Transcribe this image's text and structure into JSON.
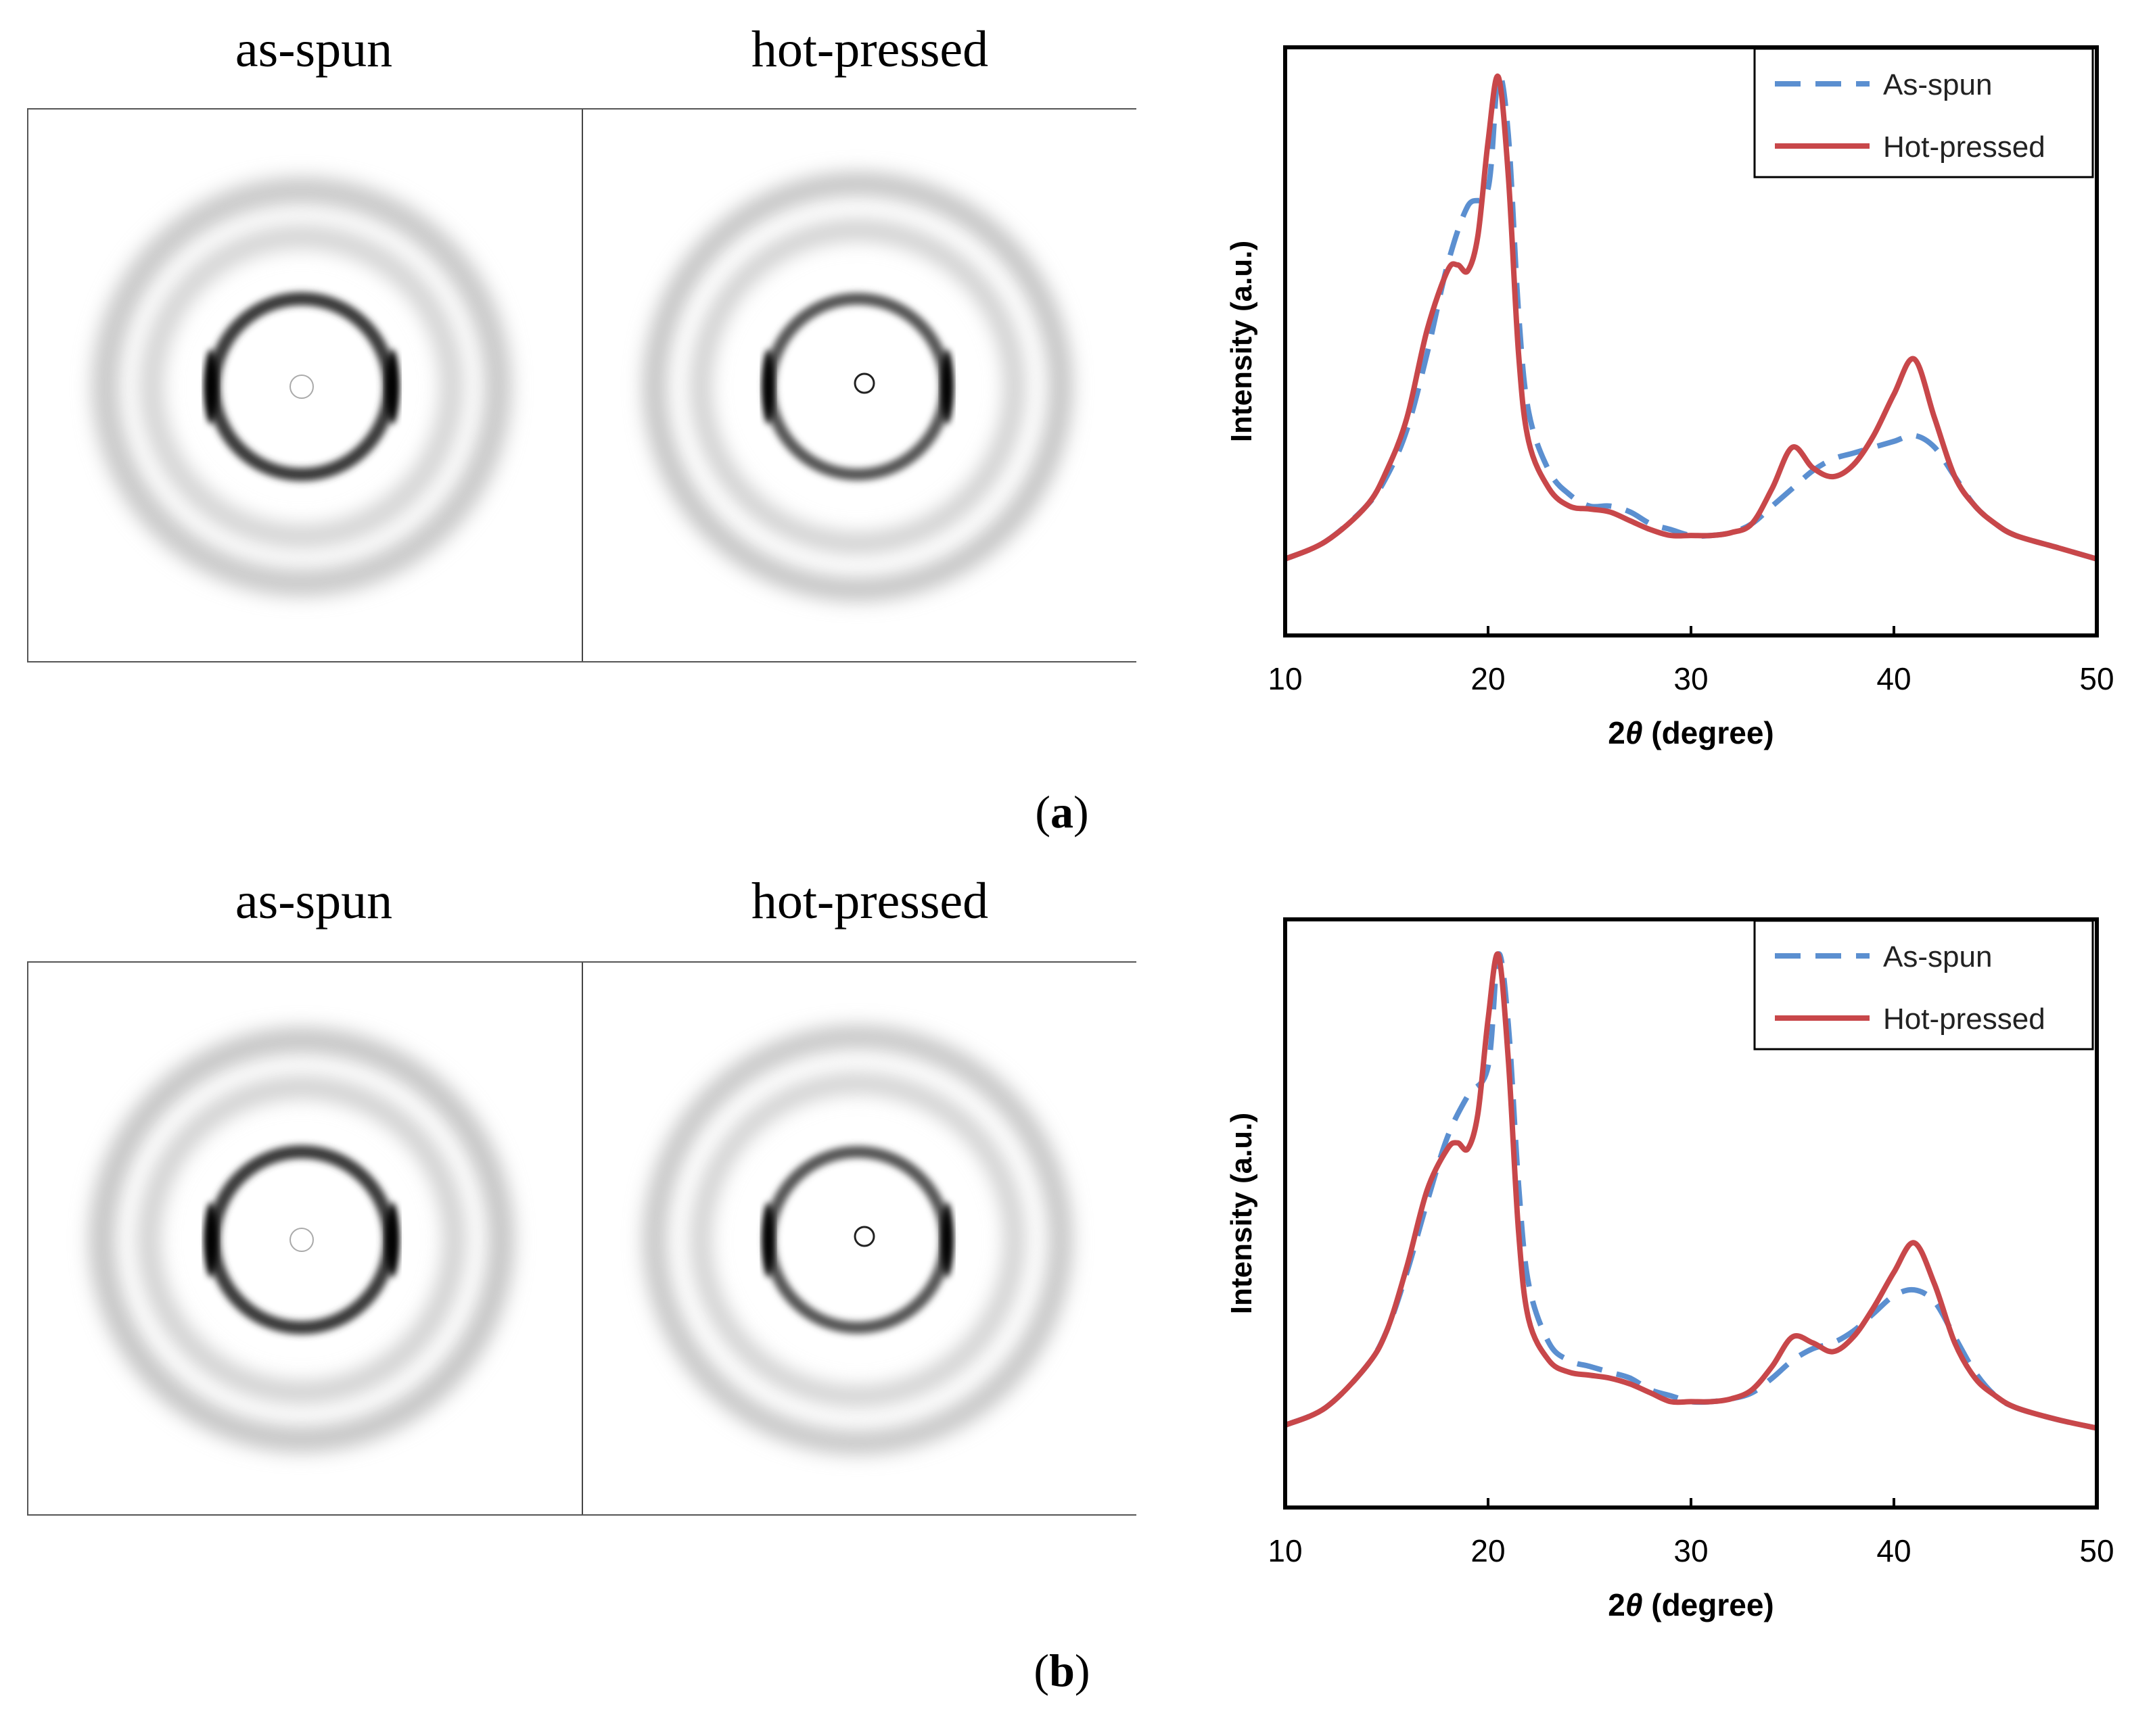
{
  "panels": [
    {
      "id": "a",
      "label": "a",
      "image_labels": {
        "left": "as-spun",
        "right": "hot-pressed"
      },
      "legend": [
        "As-spun",
        "Hot-pressed"
      ]
    },
    {
      "id": "b",
      "label": "b",
      "image_labels": {
        "left": "as-spun",
        "right": "hot-pressed"
      },
      "legend": [
        "As-spun",
        "Hot-pressed"
      ]
    }
  ],
  "colors": {
    "as_spun": "#5b8fd0",
    "hot_pressed": "#c8474a",
    "axis": "#000000"
  },
  "chart_data": [
    {
      "type": "line",
      "panel": "a",
      "title": "",
      "xlabel_prefix": "2",
      "xlabel_symbol": "θ",
      "xlabel_suffix": " (degree)",
      "ylabel": "Intensity (a.u.)",
      "xlim": [
        10,
        50
      ],
      "ylim": [
        0,
        100
      ],
      "xticks": [
        "10",
        "20",
        "30",
        "40",
        "50"
      ],
      "legend_position": "top-right",
      "series": [
        {
          "name": "As-spun",
          "style": "dashed",
          "x": [
            10,
            12,
            14,
            15,
            16,
            17,
            18,
            19,
            20,
            20.5,
            21,
            21.5,
            22,
            23,
            24,
            25,
            26,
            27,
            28,
            29,
            30,
            31,
            32,
            33,
            34,
            35,
            36,
            37,
            38,
            39,
            40,
            41,
            42,
            43,
            44,
            45,
            46,
            48,
            50
          ],
          "y": [
            13,
            16,
            22,
            27,
            35,
            48,
            63,
            73,
            76,
            95,
            85,
            55,
            38,
            28,
            24,
            22,
            22,
            21,
            19,
            18,
            17,
            17,
            17.5,
            19,
            22,
            25,
            28,
            30,
            31,
            32,
            33,
            34,
            32,
            27,
            22,
            19,
            17,
            15,
            13
          ]
        },
        {
          "name": "Hot-pressed",
          "style": "solid",
          "x": [
            10,
            12,
            14,
            15,
            16,
            17,
            18,
            18.5,
            19,
            19.5,
            20,
            20.5,
            21,
            21.5,
            22,
            23,
            24,
            25,
            26,
            27,
            28,
            29,
            30,
            31,
            32,
            33,
            34,
            35,
            36,
            37,
            38,
            39,
            40,
            41,
            42,
            43,
            44,
            45,
            46,
            48,
            50
          ],
          "y": [
            13,
            16,
            22,
            28,
            37,
            52,
            62,
            63,
            62,
            68,
            84,
            95,
            78,
            48,
            33,
            25,
            22,
            21.5,
            21,
            19.5,
            18,
            17,
            17,
            17,
            17.5,
            19,
            25,
            32,
            28.5,
            27,
            29,
            34,
            41,
            47,
            37,
            27,
            22,
            19,
            17,
            15,
            13
          ]
        }
      ]
    },
    {
      "type": "line",
      "panel": "b",
      "title": "",
      "xlabel_prefix": "2",
      "xlabel_symbol": "θ",
      "xlabel_suffix": " (degree)",
      "ylabel": "Intensity (a.u.)",
      "xlim": [
        10,
        50
      ],
      "ylim": [
        0,
        100
      ],
      "xticks": [
        "10",
        "20",
        "30",
        "40",
        "50"
      ],
      "legend_position": "top-right",
      "series": [
        {
          "name": "As-spun",
          "style": "dashed",
          "x": [
            10,
            12,
            14,
            15,
            16,
            17,
            18,
            19,
            20,
            20.5,
            21,
            21.5,
            22,
            23,
            24,
            25,
            26,
            27,
            28,
            29,
            30,
            31,
            32,
            33,
            34,
            35,
            36,
            37,
            38,
            39,
            40,
            41,
            42,
            43,
            44,
            45,
            46,
            48,
            50
          ],
          "y": [
            14,
            17,
            24,
            30,
            40,
            52,
            63,
            70,
            75,
            94,
            82,
            55,
            38,
            28,
            25,
            24,
            23,
            22,
            20,
            19,
            18,
            18,
            18.5,
            19.5,
            22,
            25,
            27,
            28,
            30,
            33,
            36,
            37,
            35,
            29,
            23,
            19,
            17,
            15,
            13.5
          ]
        },
        {
          "name": "Hot-pressed",
          "style": "solid",
          "x": [
            10,
            12,
            14,
            15,
            16,
            17,
            18,
            18.5,
            19,
            19.5,
            20,
            20.5,
            21,
            21.5,
            22,
            23,
            24,
            25,
            26,
            27,
            28,
            29,
            30,
            31,
            32,
            33,
            34,
            35,
            36,
            37,
            38,
            39,
            40,
            41,
            42,
            43,
            44,
            45,
            46,
            48,
            50
          ],
          "y": [
            14,
            17,
            24,
            30,
            41,
            54,
            61,
            62,
            61,
            67,
            83,
            94,
            76,
            47,
            32,
            25,
            23,
            22.5,
            22,
            21,
            19.5,
            18,
            18,
            18,
            18.5,
            20,
            24,
            29,
            28,
            26.5,
            29,
            34,
            40,
            45,
            38,
            28,
            22,
            19,
            17,
            15,
            13.5
          ]
        }
      ]
    }
  ]
}
